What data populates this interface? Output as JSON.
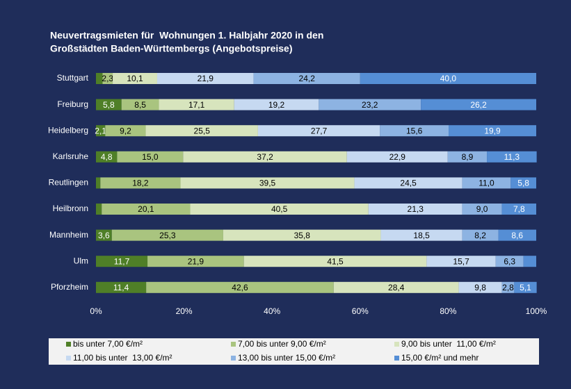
{
  "chart_data": {
    "type": "stacked_bar_horizontal",
    "title": [
      "Neuvertragsmieten für  Wohnungen 1. Halbjahr 2020 in den",
      "Großstädten Baden-Württembergs (Angebotspreise)"
    ],
    "categories": [
      "Stuttgart",
      "Freiburg",
      "Heidelberg",
      "Karlsruhe",
      "Reutlingen",
      "Heilbronn",
      "Mannheim",
      "Ulm",
      "Pforzheim"
    ],
    "series": [
      {
        "name": "bis unter 7,00 €/m²",
        "color": "#4f7f27",
        "label_color": "#ffffff",
        "values": [
          1.5,
          5.8,
          2.1,
          4.8,
          1.0,
          1.3,
          3.6,
          11.7,
          11.4
        ],
        "value_labels": [
          null,
          "5,8",
          "2,1",
          "4,8",
          null,
          null,
          "3,6",
          "11,7",
          "11,4"
        ]
      },
      {
        "name": "7,00 bis unter 9,00 €/m²",
        "color": "#a9c47f",
        "label_color": "#000000",
        "values": [
          2.3,
          8.5,
          9.2,
          15.0,
          18.2,
          20.1,
          25.3,
          21.9,
          42.6
        ],
        "value_labels": [
          "2,3",
          "8,5",
          "9,2",
          "15,0",
          "18,2",
          "20,1",
          "25,3",
          "21,9",
          "42,6"
        ]
      },
      {
        "name": "9,00 bis unter  11,00 €/m²",
        "color": "#d7e4bd",
        "label_color": "#000000",
        "values": [
          10.1,
          17.1,
          25.5,
          37.2,
          39.5,
          40.5,
          35.8,
          41.5,
          28.4
        ],
        "value_labels": [
          "10,1",
          "17,1",
          "25,5",
          "37,2",
          "39,5",
          "40,5",
          "35,8",
          "41,5",
          "28,4"
        ]
      },
      {
        "name": "11,00 bis unter  13,00 €/m²",
        "color": "#c6d9f1",
        "label_color": "#000000",
        "values": [
          21.9,
          19.2,
          27.7,
          22.9,
          24.5,
          21.3,
          18.5,
          15.7,
          9.8
        ],
        "value_labels": [
          "21,9",
          "19,2",
          "27,7",
          "22,9",
          "24,5",
          "21,3",
          "18,5",
          "15,7",
          "9,8"
        ]
      },
      {
        "name": "13,00 bis unter 15,00 €/m²",
        "color": "#8db3e2",
        "label_color": "#000000",
        "values": [
          24.2,
          23.2,
          15.6,
          8.9,
          11.0,
          9.0,
          8.2,
          6.3,
          2.8
        ],
        "value_labels": [
          "24,2",
          "23,2",
          "15,6",
          "8,9",
          "11,0",
          "9,0",
          "8,2",
          "6,3",
          "2,8"
        ]
      },
      {
        "name": "15,00 €/m² und mehr",
        "color": "#558ed5",
        "label_color": "#ffffff",
        "values": [
          40.0,
          26.2,
          19.9,
          11.3,
          5.8,
          7.8,
          8.6,
          2.9,
          5.1
        ],
        "value_labels": [
          "40,0",
          "26,2",
          "19,9",
          "11,3",
          "5,8",
          "7,8",
          "8,6",
          null,
          "5,1"
        ]
      }
    ],
    "xlim": [
      0,
      100
    ],
    "xticks": [
      {
        "value": 0,
        "label": "0%"
      },
      {
        "value": 20,
        "label": "20%"
      },
      {
        "value": 40,
        "label": "40%"
      },
      {
        "value": 60,
        "label": "60%"
      },
      {
        "value": 80,
        "label": "80%"
      },
      {
        "value": 100,
        "label": "100%"
      }
    ],
    "legend": "bottom"
  }
}
